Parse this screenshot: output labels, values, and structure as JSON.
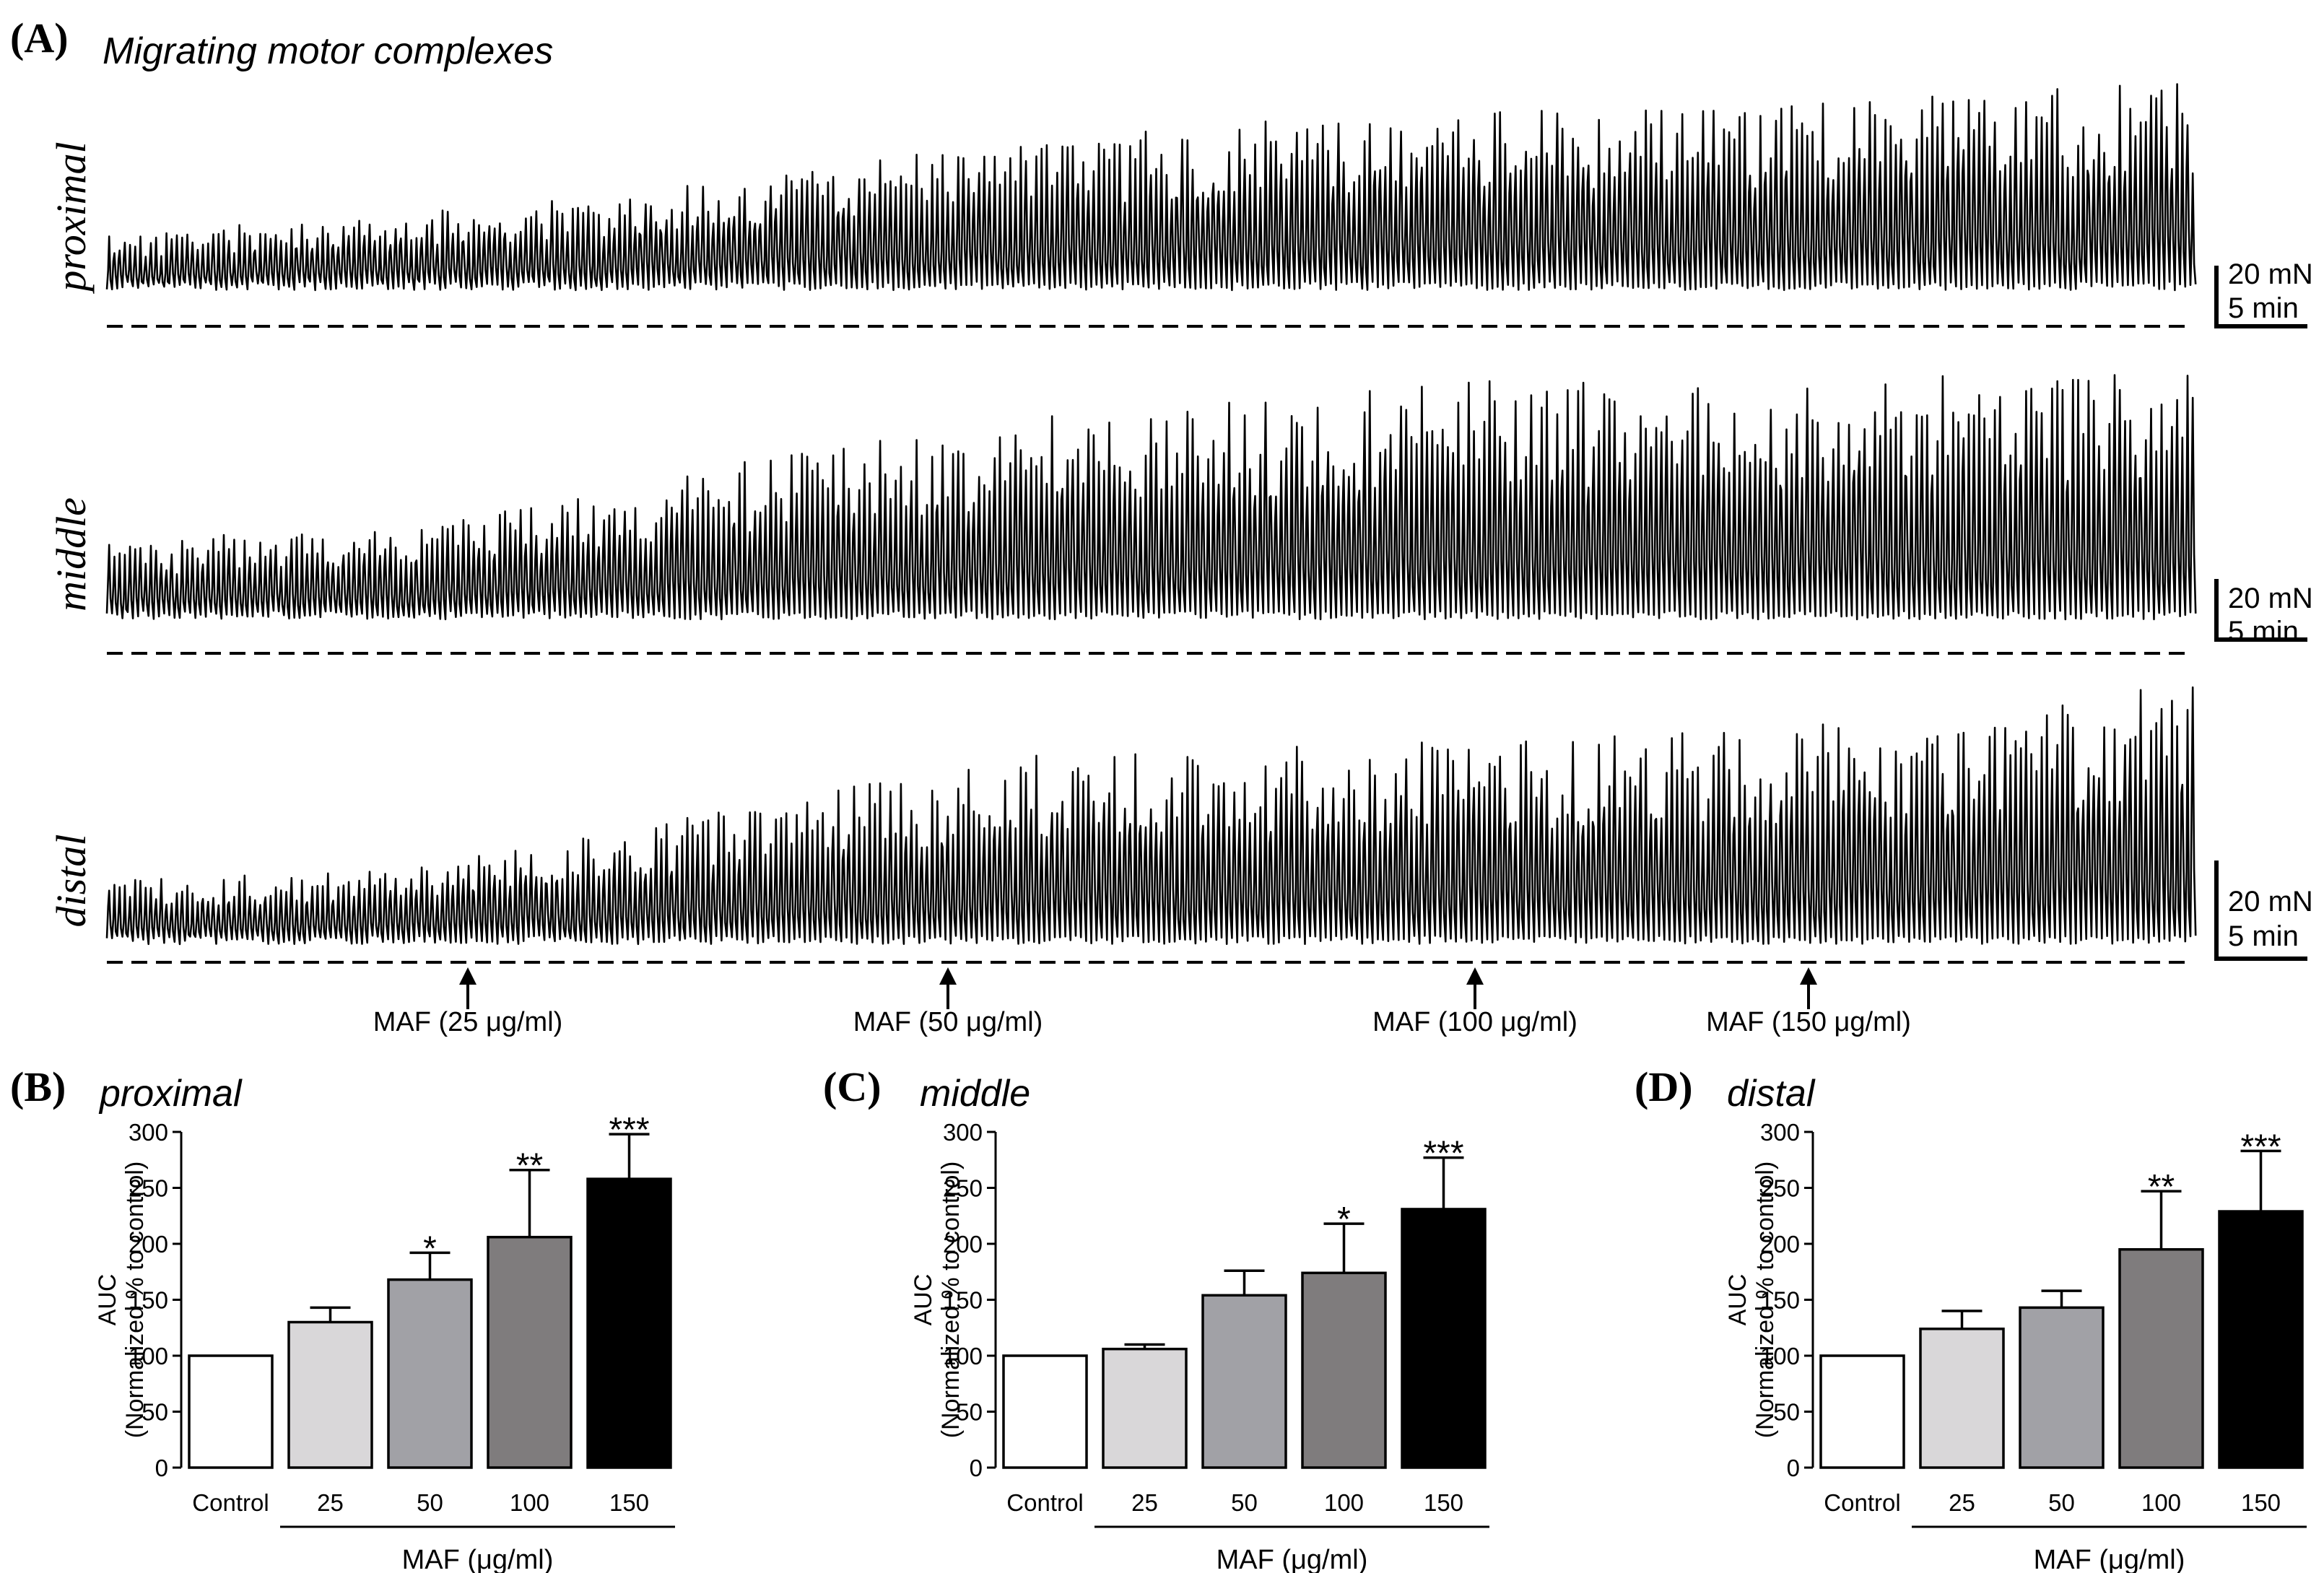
{
  "panel_a": {
    "letter": "(A)",
    "title": "Migrating motor complexes",
    "traces": [
      {
        "label": "proximal",
        "seed": 11,
        "levels": [
          0.26,
          0.34,
          0.42,
          0.56,
          0.7,
          0.78,
          0.86,
          0.84,
          0.92,
          0.96
        ]
      },
      {
        "label": "middle",
        "seed": 23,
        "levels": [
          0.28,
          0.34,
          0.44,
          0.62,
          0.74,
          0.8,
          0.88,
          0.84,
          0.9,
          0.94
        ]
      },
      {
        "label": "distal",
        "seed": 37,
        "levels": [
          0.24,
          0.28,
          0.4,
          0.56,
          0.72,
          0.74,
          0.78,
          0.8,
          0.86,
          0.98
        ]
      }
    ],
    "scale_bar": {
      "force": "20 mN",
      "time": "5 min"
    },
    "arrows": [
      {
        "label": "MAF (25 μg/ml)"
      },
      {
        "label": "MAF (50 μg/ml)"
      },
      {
        "label": "MAF (100 μg/ml)"
      },
      {
        "label": "MAF (150 μg/ml)"
      }
    ]
  },
  "chart_data": [
    {
      "type": "bar",
      "letter": "(B)",
      "title": "proximal",
      "ylabel": [
        "AUC",
        "(Normalized % to control)"
      ],
      "xlabel": "MAF (μg/ml)",
      "categories": [
        "Control",
        "25",
        "50",
        "100",
        "150"
      ],
      "values": [
        100,
        130,
        168,
        206,
        258
      ],
      "errors": [
        0,
        13,
        24,
        60,
        40
      ],
      "significance": [
        "",
        "",
        "*",
        "**",
        "***"
      ],
      "colors": [
        "#ffffff",
        "#d9d7d9",
        "#a1a1a6",
        "#7f7c7d",
        "#000000"
      ],
      "yticks": [
        "0",
        "50",
        "100",
        "150",
        "200",
        "250",
        "300"
      ],
      "ylim": [
        0,
        300
      ]
    },
    {
      "type": "bar",
      "letter": "(C)",
      "title": "middle",
      "ylabel": [
        "AUC",
        "(Normalized % to control)"
      ],
      "xlabel": "MAF (μg/ml)",
      "categories": [
        "Control",
        "25",
        "50",
        "100",
        "150"
      ],
      "values": [
        100,
        106,
        154,
        174,
        231
      ],
      "errors": [
        0,
        4,
        22,
        44,
        46
      ],
      "significance": [
        "",
        "",
        "",
        "*",
        "***"
      ],
      "colors": [
        "#ffffff",
        "#d9d7d9",
        "#a1a1a6",
        "#7f7c7d",
        "#000000"
      ],
      "yticks": [
        "0",
        "50",
        "100",
        "150",
        "200",
        "250",
        "300"
      ],
      "ylim": [
        0,
        300
      ]
    },
    {
      "type": "bar",
      "letter": "(D)",
      "title": "distal",
      "ylabel": [
        "AUC",
        "(Normalized % to control)"
      ],
      "xlabel": "MAF (μg/ml)",
      "categories": [
        "Control",
        "25",
        "50",
        "100",
        "150"
      ],
      "values": [
        100,
        124,
        143,
        195,
        229
      ],
      "errors": [
        0,
        16,
        15,
        52,
        54
      ],
      "significance": [
        "",
        "",
        "",
        "**",
        "***"
      ],
      "colors": [
        "#ffffff",
        "#d9d7d9",
        "#a1a1a6",
        "#7f7c7d",
        "#000000"
      ],
      "yticks": [
        "0",
        "50",
        "100",
        "150",
        "200",
        "250",
        "300"
      ],
      "ylim": [
        0,
        300
      ]
    }
  ]
}
